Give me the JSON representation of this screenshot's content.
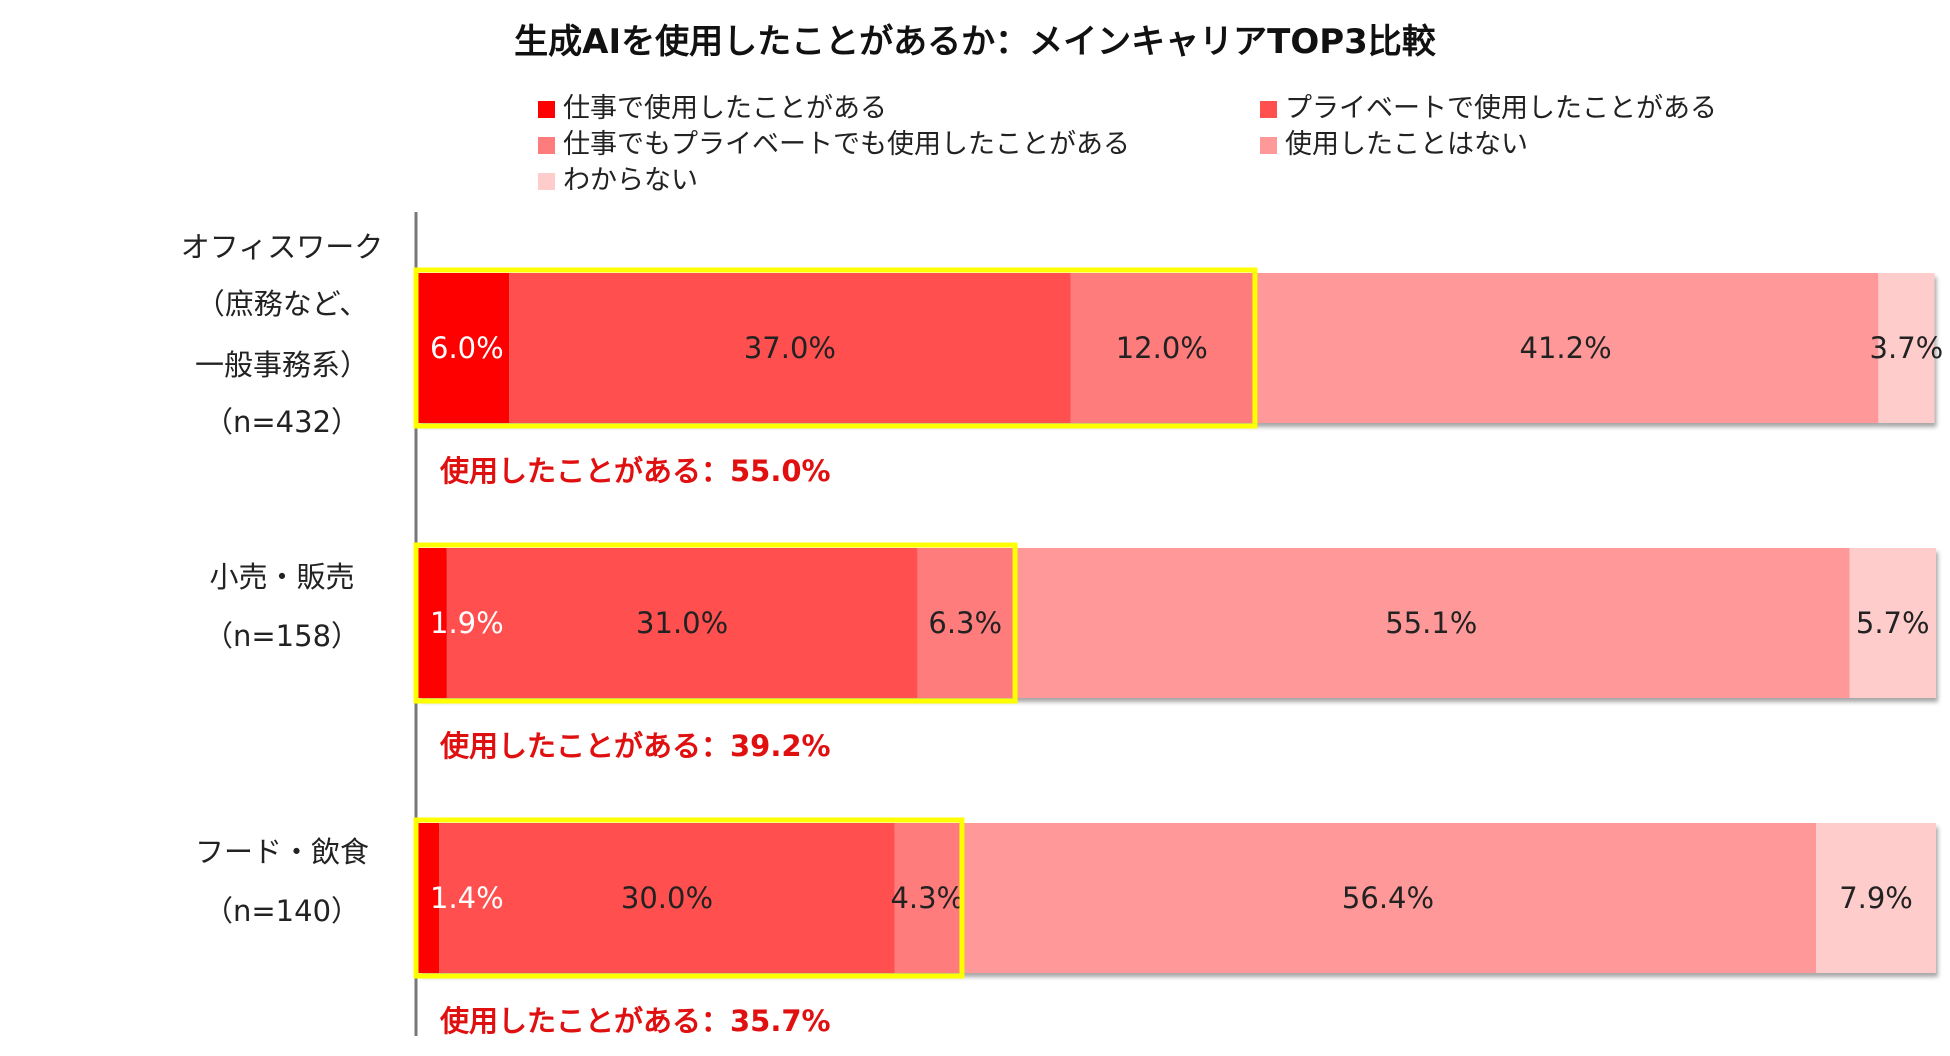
{
  "title": "生成AIを使用したことがあるか：メインキャリアTOP3比較",
  "legend": [
    {
      "label": "仕事で使用したことがある",
      "color": "#ff0000"
    },
    {
      "label": "プライベートで使用したことがある",
      "color": "#ff5050"
    },
    {
      "label": "仕事でもプライベートでも使用したことがある",
      "color": "#ff7c7c"
    },
    {
      "label": "使用したことはない",
      "color": "#ff9999"
    },
    {
      "label": "わからない",
      "color": "#ffcccc"
    }
  ],
  "chart_data": {
    "type": "bar",
    "orientation": "horizontal",
    "stacked": true,
    "categories": [
      {
        "lines": [
          "オフィスワーク",
          "（庶務など、",
          "一般事務系）",
          "（n=432）"
        ]
      },
      {
        "lines": [
          "小売・販売",
          "（n=158）"
        ]
      },
      {
        "lines": [
          "フード・飲食",
          "（n=140）"
        ]
      }
    ],
    "series": [
      {
        "name": "仕事で使用したことがある",
        "values": [
          6.0,
          1.9,
          1.4
        ],
        "labels": [
          "6.0%",
          "1.9%",
          "1.4%"
        ],
        "color": "#ff0000",
        "label_color": "#ffffff"
      },
      {
        "name": "プライベートで使用したことがある",
        "values": [
          37.0,
          31.0,
          30.0
        ],
        "labels": [
          "37.0%",
          "31.0%",
          "30.0%"
        ],
        "color": "#ff5050",
        "label_color": "#222222"
      },
      {
        "name": "仕事でもプライベートでも使用したことがある",
        "values": [
          12.0,
          6.3,
          4.3
        ],
        "labels": [
          "12.0%",
          "6.3%",
          "4.3%"
        ],
        "color": "#ff7c7c",
        "label_color": "#222222"
      },
      {
        "name": "使用したことはない",
        "values": [
          41.2,
          55.1,
          56.4
        ],
        "labels": [
          "41.2%",
          "55.1%",
          "56.4%"
        ],
        "color": "#ff9999",
        "label_color": "#222222"
      },
      {
        "name": "わからない",
        "values": [
          3.7,
          5.7,
          7.9
        ],
        "labels": [
          "3.7%",
          "5.7%",
          "7.9%"
        ],
        "color": "#ffcccc",
        "label_color": "#222222"
      }
    ],
    "highlight": {
      "values": [
        55.0,
        39.2,
        35.7
      ],
      "labels": [
        "使用したことがある：55.0%",
        "使用したことがある：39.2%",
        "使用したことがある：35.7%"
      ],
      "box_color": "#ffff00",
      "text_color": "#e01010"
    },
    "xlim": [
      0,
      100
    ],
    "grid": false
  }
}
